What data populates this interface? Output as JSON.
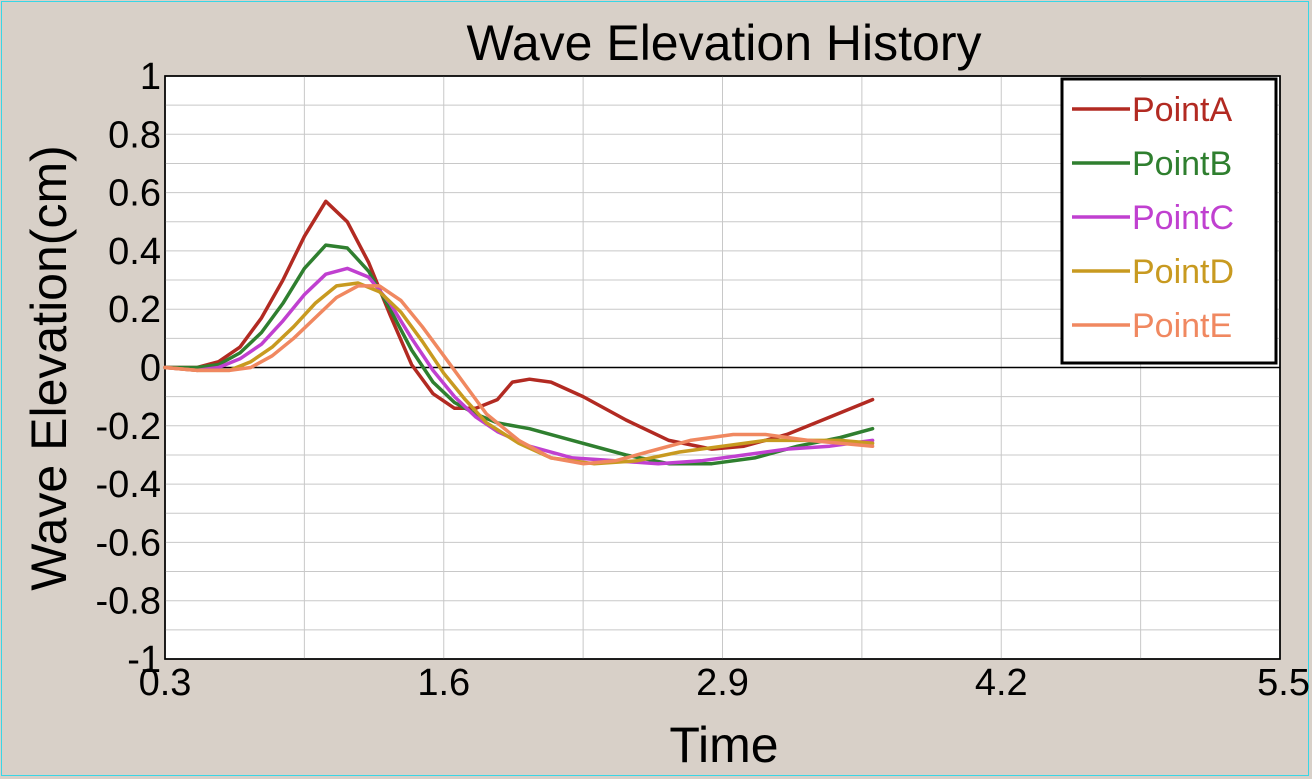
{
  "chart_data": {
    "type": "line",
    "title": "Wave Elevation History",
    "xlabel": "Time",
    "ylabel": "Wave Elevation(cm)",
    "xlim": [
      0.3,
      5.5
    ],
    "ylim": [
      -1,
      1
    ],
    "x_ticks": [
      "0.3",
      "1.6",
      "2.9",
      "4.2",
      "5.5"
    ],
    "y_ticks": [
      "1",
      "0.8",
      "0.6",
      "0.4",
      "0.2",
      "0",
      "-0.2",
      "-0.4",
      "-0.6",
      "-0.8",
      "-1"
    ],
    "grid": true,
    "legend_position": "top-right",
    "series": [
      {
        "name": "PointA",
        "color": "#b22a22",
        "points": [
          [
            0.3,
            0
          ],
          [
            0.45,
            0
          ],
          [
            0.55,
            0.02
          ],
          [
            0.65,
            0.07
          ],
          [
            0.75,
            0.17
          ],
          [
            0.85,
            0.3
          ],
          [
            0.95,
            0.45
          ],
          [
            1.05,
            0.57
          ],
          [
            1.15,
            0.5
          ],
          [
            1.25,
            0.36
          ],
          [
            1.35,
            0.18
          ],
          [
            1.45,
            0.01
          ],
          [
            1.55,
            -0.09
          ],
          [
            1.65,
            -0.14
          ],
          [
            1.75,
            -0.14
          ],
          [
            1.85,
            -0.11
          ],
          [
            1.92,
            -0.05
          ],
          [
            2.0,
            -0.04
          ],
          [
            2.1,
            -0.05
          ],
          [
            2.25,
            -0.1
          ],
          [
            2.45,
            -0.18
          ],
          [
            2.65,
            -0.25
          ],
          [
            2.85,
            -0.28
          ],
          [
            3.0,
            -0.27
          ],
          [
            3.2,
            -0.23
          ],
          [
            3.4,
            -0.17
          ],
          [
            3.6,
            -0.11
          ]
        ]
      },
      {
        "name": "PointB",
        "color": "#2f7f2f",
        "points": [
          [
            0.3,
            0
          ],
          [
            0.45,
            0
          ],
          [
            0.55,
            0.01
          ],
          [
            0.65,
            0.05
          ],
          [
            0.75,
            0.12
          ],
          [
            0.85,
            0.22
          ],
          [
            0.95,
            0.34
          ],
          [
            1.05,
            0.42
          ],
          [
            1.15,
            0.41
          ],
          [
            1.25,
            0.33
          ],
          [
            1.35,
            0.2
          ],
          [
            1.45,
            0.06
          ],
          [
            1.55,
            -0.05
          ],
          [
            1.65,
            -0.12
          ],
          [
            1.75,
            -0.16
          ],
          [
            1.85,
            -0.19
          ],
          [
            2.0,
            -0.21
          ],
          [
            2.2,
            -0.25
          ],
          [
            2.45,
            -0.3
          ],
          [
            2.65,
            -0.33
          ],
          [
            2.85,
            -0.33
          ],
          [
            3.05,
            -0.31
          ],
          [
            3.25,
            -0.27
          ],
          [
            3.45,
            -0.24
          ],
          [
            3.6,
            -0.21
          ]
        ]
      },
      {
        "name": "PointC",
        "color": "#c040d0",
        "points": [
          [
            0.3,
            0
          ],
          [
            0.45,
            -0.01
          ],
          [
            0.55,
            0
          ],
          [
            0.65,
            0.03
          ],
          [
            0.75,
            0.08
          ],
          [
            0.85,
            0.16
          ],
          [
            0.95,
            0.25
          ],
          [
            1.05,
            0.32
          ],
          [
            1.15,
            0.34
          ],
          [
            1.25,
            0.31
          ],
          [
            1.35,
            0.22
          ],
          [
            1.45,
            0.1
          ],
          [
            1.55,
            -0.01
          ],
          [
            1.65,
            -0.1
          ],
          [
            1.75,
            -0.17
          ],
          [
            1.85,
            -0.22
          ],
          [
            2.0,
            -0.27
          ],
          [
            2.2,
            -0.31
          ],
          [
            2.4,
            -0.32
          ],
          [
            2.6,
            -0.33
          ],
          [
            2.8,
            -0.32
          ],
          [
            3.0,
            -0.3
          ],
          [
            3.2,
            -0.28
          ],
          [
            3.4,
            -0.27
          ],
          [
            3.6,
            -0.25
          ]
        ]
      },
      {
        "name": "PointD",
        "color": "#c89a20",
        "points": [
          [
            0.3,
            0
          ],
          [
            0.45,
            -0.01
          ],
          [
            0.6,
            -0.01
          ],
          [
            0.7,
            0.02
          ],
          [
            0.8,
            0.07
          ],
          [
            0.9,
            0.14
          ],
          [
            1.0,
            0.22
          ],
          [
            1.1,
            0.28
          ],
          [
            1.2,
            0.29
          ],
          [
            1.3,
            0.26
          ],
          [
            1.4,
            0.19
          ],
          [
            1.5,
            0.09
          ],
          [
            1.6,
            -0.02
          ],
          [
            1.7,
            -0.11
          ],
          [
            1.8,
            -0.19
          ],
          [
            1.95,
            -0.26
          ],
          [
            2.1,
            -0.31
          ],
          [
            2.3,
            -0.33
          ],
          [
            2.5,
            -0.32
          ],
          [
            2.7,
            -0.29
          ],
          [
            2.9,
            -0.27
          ],
          [
            3.1,
            -0.25
          ],
          [
            3.3,
            -0.25
          ],
          [
            3.45,
            -0.25
          ],
          [
            3.6,
            -0.26
          ]
        ]
      },
      {
        "name": "PointE",
        "color": "#f08860",
        "points": [
          [
            0.3,
            0
          ],
          [
            0.45,
            -0.01
          ],
          [
            0.6,
            -0.01
          ],
          [
            0.7,
            0
          ],
          [
            0.8,
            0.04
          ],
          [
            0.9,
            0.1
          ],
          [
            1.0,
            0.17
          ],
          [
            1.1,
            0.24
          ],
          [
            1.2,
            0.28
          ],
          [
            1.3,
            0.28
          ],
          [
            1.4,
            0.23
          ],
          [
            1.5,
            0.14
          ],
          [
            1.6,
            0.04
          ],
          [
            1.7,
            -0.06
          ],
          [
            1.8,
            -0.16
          ],
          [
            1.95,
            -0.25
          ],
          [
            2.1,
            -0.31
          ],
          [
            2.25,
            -0.33
          ],
          [
            2.4,
            -0.32
          ],
          [
            2.55,
            -0.29
          ],
          [
            2.75,
            -0.25
          ],
          [
            2.95,
            -0.23
          ],
          [
            3.1,
            -0.23
          ],
          [
            3.3,
            -0.25
          ],
          [
            3.45,
            -0.26
          ],
          [
            3.6,
            -0.27
          ]
        ]
      }
    ]
  }
}
